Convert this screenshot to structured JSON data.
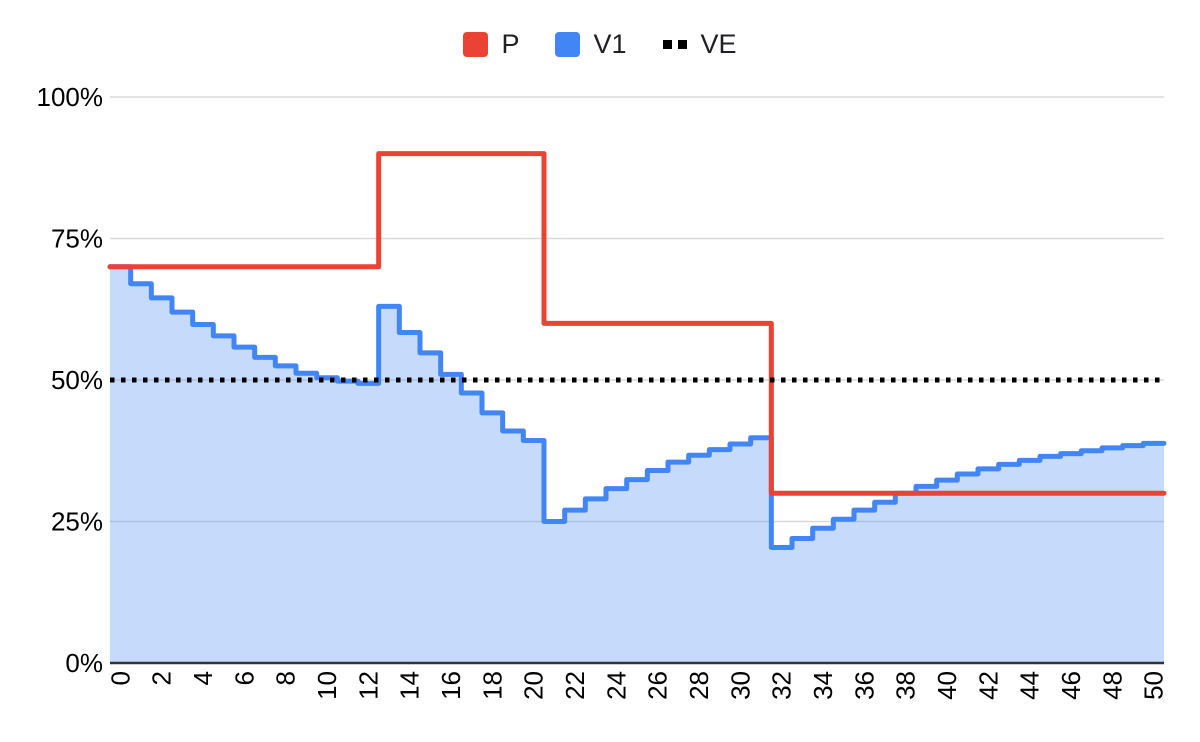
{
  "legend": {
    "items": [
      {
        "label": "P",
        "swatch": "square",
        "color": "#EA4335"
      },
      {
        "label": "V1",
        "swatch": "square",
        "color": "#4285F4"
      },
      {
        "label": "VE",
        "swatch": "dotted",
        "color": "#000000"
      }
    ]
  },
  "colors": {
    "background": "#FFFFFF",
    "gridline": "#D9D9D9",
    "axis_line": "#333333",
    "axis_text": "#000000",
    "p_line": "#EA4335",
    "v1_line": "#4285F4",
    "v1_fill": "#4285F4",
    "v1_fill_opacity": "0.3",
    "ve_line": "#000000"
  },
  "chart_data": {
    "type": "line",
    "title": "",
    "xlabel": "",
    "ylabel": "",
    "legend_position": "top",
    "grid": true,
    "ylim": [
      0,
      100
    ],
    "y_tick_values": [
      0,
      25,
      50,
      75,
      100
    ],
    "y_tick_labels": [
      "0%",
      "25%",
      "50%",
      "75%",
      "100%"
    ],
    "x": [
      0,
      1,
      2,
      3,
      4,
      5,
      6,
      7,
      8,
      9,
      10,
      11,
      12,
      13,
      14,
      15,
      16,
      17,
      18,
      19,
      20,
      21,
      22,
      23,
      24,
      25,
      26,
      27,
      28,
      29,
      30,
      31,
      32,
      33,
      34,
      35,
      36,
      37,
      38,
      39,
      40,
      41,
      42,
      43,
      44,
      45,
      46,
      47,
      48,
      49,
      50
    ],
    "x_tick_labels": [
      "0",
      "2",
      "4",
      "6",
      "8",
      "10",
      "12",
      "14",
      "16",
      "18",
      "20",
      "22",
      "24",
      "26",
      "28",
      "30",
      "32",
      "34",
      "36",
      "38",
      "40",
      "42",
      "44",
      "46",
      "48",
      "50"
    ],
    "series": [
      {
        "name": "P",
        "type": "step-line",
        "color": "#EA4335",
        "values": [
          70,
          70,
          70,
          70,
          70,
          70,
          70,
          70,
          70,
          70,
          70,
          70,
          70,
          90,
          90,
          90,
          90,
          90,
          90,
          90,
          90,
          60,
          60,
          60,
          60,
          60,
          60,
          60,
          60,
          60,
          60,
          60,
          30,
          30,
          30,
          30,
          30,
          30,
          30,
          30,
          30,
          30,
          30,
          30,
          30,
          30,
          30,
          30,
          30,
          30,
          30
        ]
      },
      {
        "name": "V1",
        "type": "step-area",
        "color": "#4285F4",
        "fill": "#CBDDFA",
        "values": [
          70,
          67,
          64.5,
          62,
          59.8,
          57.8,
          55.8,
          54,
          52.5,
          51.2,
          50.4,
          49.8,
          49.4,
          63,
          58.4,
          54.8,
          51,
          47.7,
          44.2,
          41,
          39.3,
          25,
          27,
          29,
          30.8,
          32.4,
          34,
          35.5,
          36.7,
          37.7,
          38.7,
          39.8,
          20.4,
          22,
          23.8,
          25.4,
          27,
          28.4,
          30,
          31.2,
          32.3,
          33.4,
          34.3,
          35.1,
          35.8,
          36.5,
          37,
          37.5,
          38,
          38.4,
          38.8
        ]
      },
      {
        "name": "VE",
        "type": "dotted-hline",
        "color": "#000000",
        "value": 50
      }
    ]
  }
}
